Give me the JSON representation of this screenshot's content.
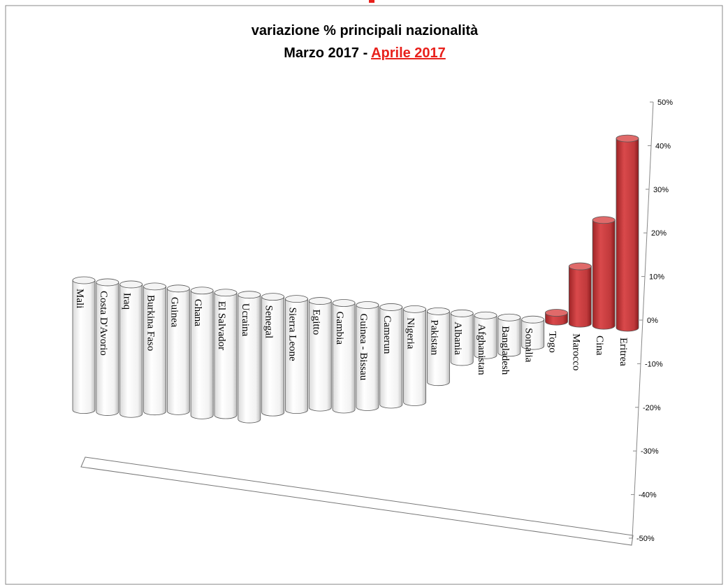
{
  "chart_data": {
    "type": "bar",
    "title": "variazione % principali nazionalità",
    "subtitle_prefix": "Marzo 2017 - ",
    "subtitle_highlight": "Aprile 2017",
    "categories": [
      "Mali",
      "Costa D'Avorio",
      "Iraq",
      "Burkina Faso",
      "Guinea",
      "Ghana",
      "El Salvador",
      "Ucraina",
      "Senegal",
      "Sierra Leone",
      "Egitto",
      "Gambia",
      "Guinea - Bissau",
      "Camerun",
      "Nigeria",
      "Pakistan",
      "Albania",
      "Afghanistan",
      "Bangladesh",
      "Somalia",
      "Togo",
      "Marocco",
      "Cina",
      "Eritrea"
    ],
    "values": [
      -29,
      -29,
      -29,
      -28,
      -27.5,
      -28,
      -27.5,
      -28,
      -26,
      -25,
      -24,
      -24,
      -23,
      -22,
      -21,
      -16,
      -11,
      -9,
      -8,
      -6,
      2,
      13,
      24,
      43
    ],
    "y_ticks": [
      "50%",
      "40%",
      "30%",
      "20%",
      "10%",
      "0%",
      "-10%",
      "-20%",
      "-30%",
      "-40%",
      "-50%"
    ],
    "ylim": [
      -50,
      50
    ],
    "xlabel": "",
    "ylabel": "",
    "grid": false,
    "legend": "none",
    "colors": {
      "negative": "#ffffff",
      "positive": "#c0393b",
      "positive_top": "#e06a6a",
      "outline": "#555555",
      "accent": "#e8201b"
    }
  }
}
